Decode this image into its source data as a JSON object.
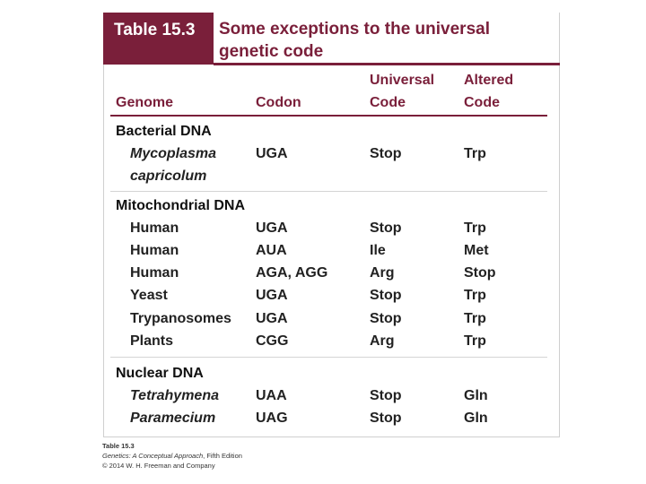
{
  "table": {
    "label": "Table 15.3",
    "title_line1": "Some exceptions to the universal",
    "title_line2": "genetic code",
    "headers": {
      "genome": "Genome",
      "codon": "Codon",
      "universal_line1": "Universal",
      "universal_line2": "Code",
      "altered_line1": "Altered",
      "altered_line2": "Code"
    },
    "sections": [
      {
        "name": "Bacterial DNA",
        "rows": [
          {
            "organism": "Mycoplasma",
            "organism_line2": "capricolum",
            "italic": true,
            "codon": "UGA",
            "universal": "Stop",
            "altered": "Trp"
          }
        ]
      },
      {
        "name": "Mitochondrial DNA",
        "rows": [
          {
            "organism": "Human",
            "italic": false,
            "codon": "UGA",
            "universal": "Stop",
            "altered": "Trp"
          },
          {
            "organism": "Human",
            "italic": false,
            "codon": "AUA",
            "universal": "Ile",
            "altered": "Met"
          },
          {
            "organism": "Human",
            "italic": false,
            "codon": "AGA, AGG",
            "universal": "Arg",
            "altered": "Stop"
          },
          {
            "organism": "Yeast",
            "italic": false,
            "codon": "UGA",
            "universal": "Stop",
            "altered": "Trp"
          },
          {
            "organism": "Trypanosomes",
            "italic": false,
            "codon": "UGA",
            "universal": "Stop",
            "altered": "Trp"
          },
          {
            "organism": "Plants",
            "italic": false,
            "codon": "CGG",
            "universal": "Arg",
            "altered": "Trp"
          }
        ]
      },
      {
        "name": "Nuclear DNA",
        "rows": [
          {
            "organism": "Tetrahymena",
            "italic": true,
            "codon": "UAA",
            "universal": "Stop",
            "altered": "Gln"
          },
          {
            "organism": "Paramecium",
            "italic": true,
            "codon": "UAG",
            "universal": "Stop",
            "altered": "Gln"
          }
        ]
      }
    ]
  },
  "caption": {
    "line1": "Table 15.3",
    "line2_book": "Genetics: A Conceptual Approach",
    "line2_edition": ", Fifth Edition",
    "line3": "© 2014 W. H. Freeman and Company"
  },
  "colors": {
    "accent": "#7a1f3a",
    "rule_light": "#d4d4d4"
  }
}
